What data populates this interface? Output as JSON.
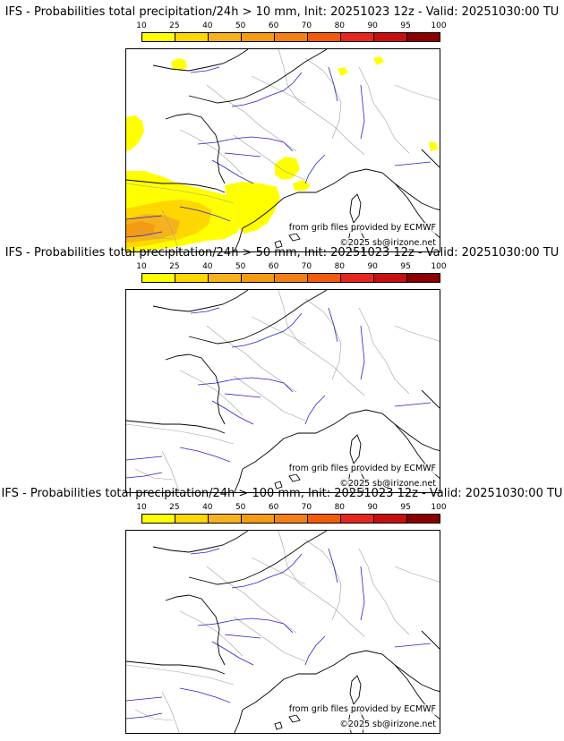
{
  "panels": [
    {
      "title": "IFS - Probabilities total precipitation/24h > 10 mm, Init: 20251023 12z - Valid: 20251030:00 TU",
      "colorbar_labels": [
        "10",
        "25",
        "40",
        "50",
        "60",
        "70",
        "80",
        "90",
        "95",
        "100"
      ],
      "source_credit": "from grib files provided by ECMWF",
      "copyright": "©2025 sb@irizone.net",
      "has_precip_areas": true
    },
    {
      "title": "IFS - Probabilities total precipitation/24h > 50 mm, Init: 20251023 12z - Valid: 20251030:00 TU",
      "colorbar_labels": [
        "10",
        "25",
        "40",
        "50",
        "60",
        "70",
        "80",
        "90",
        "95",
        "100"
      ],
      "source_credit": "from grib files provided by ECMWF",
      "copyright": "©2025 sb@irizone.net",
      "has_precip_areas": false
    },
    {
      "title": "IFS - Probabilities total precipitation/24h > 100 mm, Init: 20251023 12z - Valid: 20251030:00 TU",
      "colorbar_labels": [
        "10",
        "25",
        "40",
        "50",
        "60",
        "70",
        "80",
        "90",
        "95",
        "100"
      ],
      "source_credit": "from grib files provided by ECMWF",
      "copyright": "©2025 sb@irizone.net",
      "has_precip_areas": false
    }
  ],
  "colors": {
    "scale": [
      "#ffff00",
      "#ffd700",
      "#f5b21c",
      "#f39c12",
      "#f57f17",
      "#f35b0a",
      "#e6261f",
      "#c80f0f",
      "#8b0000"
    ],
    "coast": "#000000",
    "rivers": "#2222cc",
    "borders": "#a0a0a0"
  }
}
